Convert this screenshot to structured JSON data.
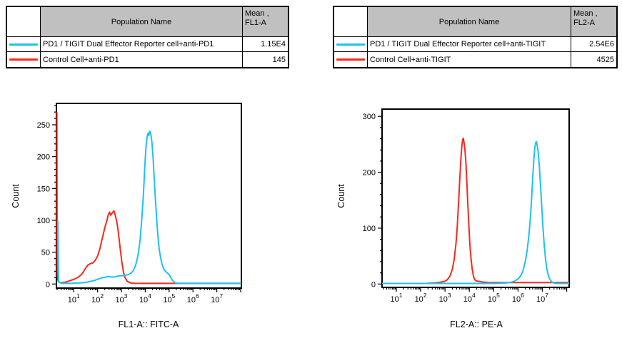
{
  "colors": {
    "curve_cyan": "#1BC2F2",
    "curve_red": "#F8281C",
    "table_header_bg": "#C0C0C0",
    "frame": "#000000"
  },
  "panels": [
    {
      "table": {
        "population_header": "Population Name",
        "mean_header_line1": "Mean ,",
        "mean_header_line2": "FL1-A",
        "rows": [
          {
            "name": "PD1 / TIGIT Dual Effector Reporter cell+anti-PD1",
            "mean": "1.15E4",
            "color": "#1BC2F2"
          },
          {
            "name": "Control Cell+anti-PD1",
            "mean": "145",
            "color": "#F8281C"
          }
        ]
      }
    },
    {
      "table": {
        "population_header": "Population Name",
        "mean_header_line1": "Mean ,",
        "mean_header_line2": "FL2-A",
        "rows": [
          {
            "name": "PD1 / TIGIT Dual Effector Reporter cell+anti-TIGIT",
            "mean": "2.54E6",
            "color": "#1BC2F2"
          },
          {
            "name": "Control Cell+anti-TIGIT",
            "mean": "4525",
            "color": "#F8281C"
          }
        ]
      }
    }
  ],
  "chart_data": [
    {
      "type": "line",
      "subtype": "flow-cytometry-histogram",
      "title": "",
      "xlabel": "FL1-A:: FITC-A",
      "ylabel": "Count",
      "x_scale": "log10",
      "x_domain_log": [
        0.273,
        8.03
      ],
      "x_tick_base": "10",
      "x_major_tick_exponents": [
        1,
        2,
        3,
        4,
        5,
        6,
        7
      ],
      "y_domain": [
        -6.4,
        283.6
      ],
      "y_major_ticks": [
        0,
        50,
        100,
        150,
        200,
        250
      ],
      "y_minor_step": 10,
      "grid": false,
      "legend_position": "table-above",
      "series": [
        {
          "name": "PD1 / TIGIT Dual Effector Reporter cell+anti-PD1",
          "color": "#1BC2F2",
          "points_logx_count": [
            [
              0.33,
              99
            ],
            [
              0.35,
              20
            ],
            [
              0.37,
              3
            ],
            [
              0.5,
              1
            ],
            [
              0.9,
              1
            ],
            [
              1.2,
              1.5
            ],
            [
              1.5,
              2.5
            ],
            [
              1.7,
              4
            ],
            [
              1.9,
              6
            ],
            [
              2.05,
              8
            ],
            [
              2.2,
              10
            ],
            [
              2.35,
              11
            ],
            [
              2.45,
              12
            ],
            [
              2.55,
              11
            ],
            [
              2.7,
              11
            ],
            [
              2.8,
              12
            ],
            [
              2.9,
              13
            ],
            [
              3.0,
              13
            ],
            [
              3.1,
              13
            ],
            [
              3.2,
              14
            ],
            [
              3.3,
              15
            ],
            [
              3.4,
              17
            ],
            [
              3.5,
              21
            ],
            [
              3.6,
              30
            ],
            [
              3.7,
              46
            ],
            [
              3.78,
              68
            ],
            [
              3.85,
              100
            ],
            [
              3.92,
              140
            ],
            [
              3.98,
              185
            ],
            [
              4.03,
              215
            ],
            [
              4.08,
              232
            ],
            [
              4.12,
              237
            ],
            [
              4.15,
              233
            ],
            [
              4.19,
              240
            ],
            [
              4.23,
              236
            ],
            [
              4.28,
              222
            ],
            [
              4.33,
              196
            ],
            [
              4.38,
              163
            ],
            [
              4.43,
              130
            ],
            [
              4.48,
              100
            ],
            [
              4.53,
              76
            ],
            [
              4.58,
              56
            ],
            [
              4.64,
              42
            ],
            [
              4.7,
              31
            ],
            [
              4.76,
              25
            ],
            [
              4.82,
              21
            ],
            [
              4.9,
              18
            ],
            [
              5.0,
              15
            ],
            [
              5.06,
              11
            ],
            [
              5.12,
              7
            ],
            [
              5.18,
              4
            ],
            [
              5.25,
              2
            ],
            [
              5.35,
              1
            ],
            [
              8.03,
              1
            ]
          ]
        },
        {
          "name": "Control Cell+anti-PD1",
          "color": "#F8281C",
          "points_logx_count": [
            [
              0.29,
              269
            ],
            [
              0.3,
              80
            ],
            [
              0.31,
              12
            ],
            [
              0.35,
              4
            ],
            [
              0.45,
              2
            ],
            [
              0.6,
              2.5
            ],
            [
              0.75,
              4
            ],
            [
              0.9,
              6
            ],
            [
              1.05,
              8
            ],
            [
              1.2,
              11
            ],
            [
              1.35,
              16
            ],
            [
              1.5,
              25
            ],
            [
              1.6,
              30
            ],
            [
              1.7,
              32
            ],
            [
              1.8,
              33
            ],
            [
              1.9,
              37
            ],
            [
              2.0,
              44
            ],
            [
              2.1,
              56
            ],
            [
              2.2,
              72
            ],
            [
              2.3,
              88
            ],
            [
              2.4,
              101
            ],
            [
              2.45,
              109
            ],
            [
              2.5,
              113
            ],
            [
              2.55,
              108
            ],
            [
              2.62,
              112
            ],
            [
              2.68,
              115
            ],
            [
              2.73,
              110
            ],
            [
              2.78,
              102
            ],
            [
              2.84,
              90
            ],
            [
              2.9,
              72
            ],
            [
              2.96,
              52
            ],
            [
              3.02,
              34
            ],
            [
              3.08,
              20
            ],
            [
              3.15,
              10
            ],
            [
              3.25,
              4
            ],
            [
              3.4,
              1.5
            ],
            [
              3.6,
              1
            ],
            [
              8.03,
              1
            ]
          ]
        }
      ]
    },
    {
      "type": "line",
      "subtype": "flow-cytometry-histogram",
      "title": "",
      "xlabel": "FL2-A:: PE-A",
      "ylabel": "Count",
      "x_scale": "log10",
      "x_domain_log": [
        0.414,
        8.1
      ],
      "x_tick_base": "10",
      "x_major_tick_exponents": [
        1,
        2,
        3,
        4,
        5,
        6,
        7
      ],
      "y_domain": [
        -6,
        313
      ],
      "y_major_ticks": [
        0,
        100,
        200,
        300
      ],
      "y_minor_step": 20,
      "grid": false,
      "legend_position": "table-above",
      "series": [
        {
          "name": "PD1 / TIGIT Dual Effector Reporter cell+anti-TIGIT",
          "color": "#1BC2F2",
          "points_logx_count": [
            [
              0.414,
              1
            ],
            [
              5.1,
              1
            ],
            [
              5.3,
              1.5
            ],
            [
              5.5,
              2
            ],
            [
              5.7,
              3
            ],
            [
              5.85,
              5
            ],
            [
              6.0,
              9
            ],
            [
              6.1,
              14
            ],
            [
              6.2,
              23
            ],
            [
              6.3,
              40
            ],
            [
              6.38,
              62
            ],
            [
              6.45,
              90
            ],
            [
              6.5,
              115
            ],
            [
              6.55,
              148
            ],
            [
              6.6,
              188
            ],
            [
              6.65,
              224
            ],
            [
              6.69,
              244
            ],
            [
              6.72,
              252
            ],
            [
              6.75,
              255
            ],
            [
              6.79,
              248
            ],
            [
              6.83,
              235
            ],
            [
              6.88,
              208
            ],
            [
              6.93,
              172
            ],
            [
              6.98,
              135
            ],
            [
              7.03,
              98
            ],
            [
              7.08,
              68
            ],
            [
              7.13,
              45
            ],
            [
              7.18,
              28
            ],
            [
              7.24,
              16
            ],
            [
              7.3,
              9
            ],
            [
              7.38,
              4
            ],
            [
              7.46,
              2
            ],
            [
              7.55,
              1
            ],
            [
              8.1,
              1
            ]
          ]
        },
        {
          "name": "Control Cell+anti-TIGIT",
          "color": "#F8281C",
          "points_logx_count": [
            [
              0.414,
              1
            ],
            [
              2.2,
              1
            ],
            [
              2.4,
              1.5
            ],
            [
              2.6,
              2
            ],
            [
              2.8,
              3
            ],
            [
              3.0,
              5
            ],
            [
              3.1,
              8
            ],
            [
              3.2,
              14
            ],
            [
              3.3,
              26
            ],
            [
              3.38,
              45
            ],
            [
              3.45,
              72
            ],
            [
              3.5,
              100
            ],
            [
              3.55,
              140
            ],
            [
              3.6,
              182
            ],
            [
              3.65,
              222
            ],
            [
              3.69,
              247
            ],
            [
              3.72,
              257
            ],
            [
              3.75,
              261
            ],
            [
              3.78,
              254
            ],
            [
              3.82,
              240
            ],
            [
              3.86,
              215
            ],
            [
              3.9,
              180
            ],
            [
              3.94,
              140
            ],
            [
              3.98,
              104
            ],
            [
              4.02,
              72
            ],
            [
              4.07,
              45
            ],
            [
              4.12,
              26
            ],
            [
              4.17,
              14
            ],
            [
              4.22,
              8
            ],
            [
              4.28,
              5.5
            ],
            [
              4.35,
              5
            ],
            [
              4.45,
              4.5
            ],
            [
              4.55,
              3.5
            ],
            [
              4.65,
              3
            ],
            [
              4.8,
              2.5
            ],
            [
              8.1,
              2.5
            ]
          ]
        }
      ]
    }
  ]
}
